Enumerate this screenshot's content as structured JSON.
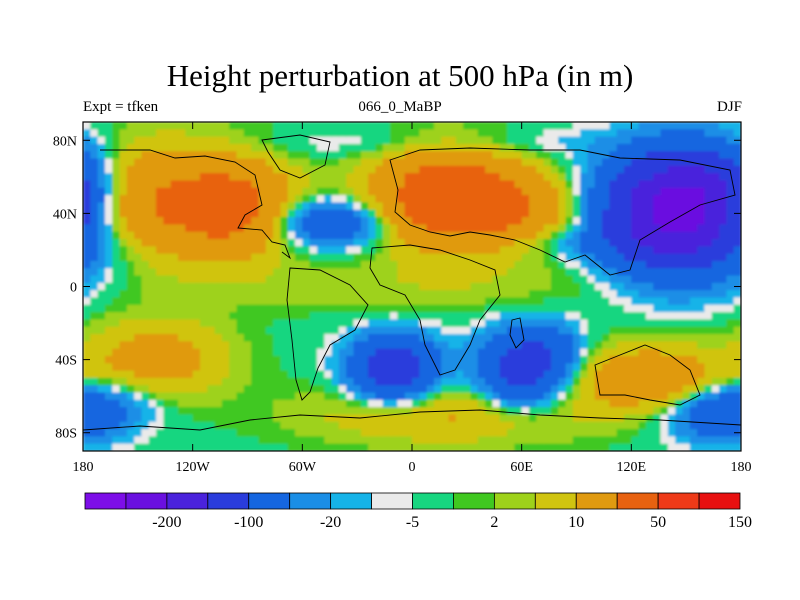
{
  "title": "Height perturbation at 500 hPa (in m)",
  "subtitle_left": "Expt = tfken",
  "subtitle_center": "066_0_MaBP",
  "subtitle_right": "DJF",
  "map": {
    "projection": "cylindrical-equidistant",
    "lon_range": [
      -180,
      180
    ],
    "lat_range": [
      -90,
      90
    ],
    "lat_ticks": [
      {
        "value": 80,
        "label": "80N"
      },
      {
        "value": 40,
        "label": "40N"
      },
      {
        "value": 0,
        "label": "0"
      },
      {
        "value": -40,
        "label": "40S"
      },
      {
        "value": -80,
        "label": "80S"
      }
    ],
    "lon_ticks": [
      {
        "value": -180,
        "label": "180"
      },
      {
        "value": -120,
        "label": "120W"
      },
      {
        "value": -60,
        "label": "60W"
      },
      {
        "value": 0,
        "label": "0"
      },
      {
        "value": 60,
        "label": "60E"
      },
      {
        "value": 120,
        "label": "120E"
      },
      {
        "value": 180,
        "label": "180"
      }
    ]
  },
  "colorbar": {
    "colors": [
      "#7d0ee8",
      "#6a10e0",
      "#4a22dc",
      "#2a3cdc",
      "#1566e0",
      "#1a8ee6",
      "#16b3e8",
      "#eaeaea",
      "#17d680",
      "#40c820",
      "#9ed21a",
      "#d0c410",
      "#e09a10",
      "#e86210",
      "#ee3a18",
      "#e81010"
    ],
    "labels": [
      {
        "after_box": 2,
        "text": "-200"
      },
      {
        "after_box": 4,
        "text": "-100"
      },
      {
        "after_box": 6,
        "text": "-20"
      },
      {
        "after_box": 8,
        "text": "-5"
      },
      {
        "after_box": 10,
        "text": "2"
      },
      {
        "after_box": 12,
        "text": "10"
      },
      {
        "after_box": 14,
        "text": "50"
      },
      {
        "after_box": 16,
        "text": "150"
      }
    ]
  },
  "features": [
    {
      "lon": -140,
      "lat": 45,
      "value": 55,
      "sx": 40,
      "sy": 22
    },
    {
      "lon": -95,
      "lat": 42,
      "value": 45,
      "sx": 20,
      "sy": 16
    },
    {
      "lon": 20,
      "lat": 48,
      "value": 85,
      "sx": 28,
      "sy": 18
    },
    {
      "lon": 60,
      "lat": 40,
      "value": 30,
      "sx": 25,
      "sy": 14
    },
    {
      "lon": 145,
      "lat": 42,
      "value": -170,
      "sx": 26,
      "sy": 20
    },
    {
      "lon": 170,
      "lat": 55,
      "value": -40,
      "sx": 22,
      "sy": 16
    },
    {
      "lon": -45,
      "lat": 35,
      "value": -45,
      "sx": 24,
      "sy": 9
    },
    {
      "lon": 110,
      "lat": 25,
      "value": -15,
      "sx": 55,
      "sy": 7
    },
    {
      "lon": 20,
      "lat": 78,
      "value": -8,
      "sx": 80,
      "sy": 6
    },
    {
      "lon": -160,
      "lat": 20,
      "value": -8,
      "sx": 30,
      "sy": 15
    },
    {
      "lon": 150,
      "lat": 10,
      "value": -10,
      "sx": 30,
      "sy": 15
    },
    {
      "lon": 0,
      "lat": 0,
      "value": 8,
      "sx": 90,
      "sy": 10
    },
    {
      "lon": -140,
      "lat": -40,
      "value": 30,
      "sx": 28,
      "sy": 15
    },
    {
      "lon": -10,
      "lat": -45,
      "value": -80,
      "sx": 16,
      "sy": 12
    },
    {
      "lon": 60,
      "lat": -45,
      "value": -75,
      "sx": 16,
      "sy": 14
    },
    {
      "lon": 80,
      "lat": -35,
      "value": -20,
      "sx": 10,
      "sy": 10
    },
    {
      "lon": 130,
      "lat": -50,
      "value": 40,
      "sx": 28,
      "sy": 12
    },
    {
      "lon": 170,
      "lat": -70,
      "value": -40,
      "sx": 20,
      "sy": 10
    },
    {
      "lon": -170,
      "lat": -65,
      "value": -20,
      "sx": 22,
      "sy": 10
    },
    {
      "lon": 20,
      "lat": -70,
      "value": 22,
      "sx": 55,
      "sy": 12
    }
  ]
}
